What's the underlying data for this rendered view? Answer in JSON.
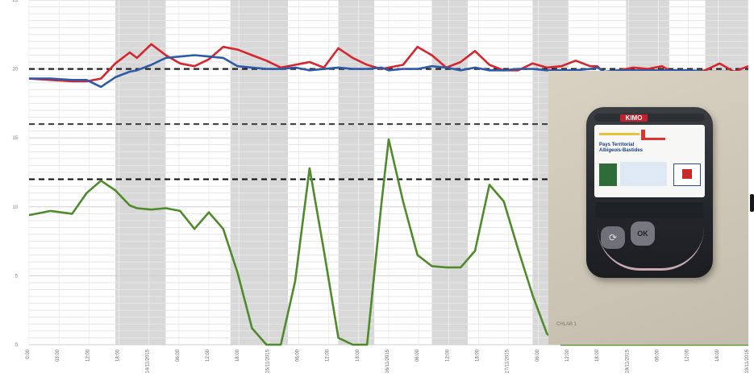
{
  "chart_data": {
    "type": "line",
    "title": "",
    "xlabel": "",
    "ylabel": "",
    "ylim": [
      0,
      25
    ],
    "yticks": [
      "0",
      "5",
      "10",
      "15",
      "20",
      "25"
    ],
    "x_tick_labels": [
      "0:00",
      "03:00",
      "12:00",
      "18:00",
      "14/11/2015",
      "06:00",
      "12:00",
      "18:00",
      "15/11/2015",
      "06:00",
      "12:00",
      "18:00",
      "16/11/2015",
      "06:00",
      "12:00",
      "18:00",
      "17/11/2015",
      "06:00",
      "12:00",
      "18:00",
      "18/11/2015",
      "06:00",
      "12:00",
      "18:00",
      "19/11/2015"
    ],
    "reference_lines": [
      {
        "y": 20.0,
        "style": "dashed",
        "color": "#222222"
      },
      {
        "y": 16.0,
        "style": "dashed",
        "color": "#444444"
      },
      {
        "y": 12.0,
        "style": "dashed",
        "color": "#111111"
      }
    ],
    "x": [
      0,
      3,
      6,
      8,
      10,
      12,
      14,
      15,
      17,
      19,
      21,
      23,
      25,
      27,
      29,
      31,
      33,
      35,
      37,
      39,
      41,
      43,
      45,
      47,
      49,
      50,
      52,
      54,
      56,
      58,
      60,
      62,
      64,
      66,
      68,
      70,
      72,
      74,
      76,
      78,
      79,
      80,
      82,
      84,
      86,
      88,
      90,
      92,
      94,
      96,
      98,
      100
    ],
    "series": [
      {
        "color": "#d6252c",
        "values": [
          19.3,
          19.2,
          19.1,
          19.1,
          19.3,
          20.4,
          21.2,
          20.8,
          21.8,
          21.0,
          20.4,
          20.2,
          20.7,
          21.6,
          21.4,
          21.0,
          20.6,
          20.1,
          20.3,
          20.5,
          20.1,
          21.5,
          20.8,
          20.3,
          20.0,
          20.1,
          20.3,
          21.6,
          21.0,
          20.1,
          20.5,
          21.3,
          20.3,
          19.9,
          19.9,
          20.4,
          20.1,
          20.2,
          20.6,
          20.2,
          20.2,
          19.7,
          19.9,
          20.1,
          20.0,
          20.2,
          19.6,
          19.7,
          19.9,
          20.4,
          19.8,
          20.2
        ]
      },
      {
        "color": "#2e5aa8",
        "values": [
          19.3,
          19.3,
          19.2,
          19.2,
          18.7,
          19.4,
          19.8,
          19.9,
          20.3,
          20.8,
          20.9,
          21.0,
          20.9,
          20.8,
          20.2,
          20.1,
          20.0,
          20.0,
          20.1,
          19.9,
          20.0,
          20.1,
          20.0,
          20.0,
          20.1,
          19.9,
          20.0,
          20.0,
          20.2,
          20.1,
          19.9,
          20.1,
          19.9,
          19.9,
          20.0,
          20.0,
          19.9,
          19.9,
          19.9,
          20.0,
          20.1,
          19.8,
          19.9,
          19.9,
          19.9,
          19.9,
          19.9,
          19.9,
          19.8,
          19.8,
          19.8,
          19.8
        ]
      },
      {
        "color": "#4f8a2b",
        "values": [
          9.4,
          9.7,
          9.5,
          11.0,
          11.9,
          11.2,
          10.1,
          9.9,
          9.8,
          9.9,
          9.7,
          8.4,
          9.6,
          8.4,
          5.2,
          1.2,
          0.0,
          0.0,
          4.6,
          12.8,
          6.8,
          0.5,
          0.0,
          0.0,
          10.3,
          14.9,
          10.4,
          6.5,
          5.7,
          5.6,
          5.6,
          6.8,
          11.6,
          10.4,
          6.9,
          3.6,
          0.8,
          0.0,
          0.0,
          0.0,
          0.0,
          0.0,
          0.0,
          0.0,
          0.0,
          0.0,
          0.0,
          0.0,
          0.0,
          0.0,
          0.0,
          0.0
        ]
      }
    ],
    "grid": true,
    "shaded_bands": [
      [
        12,
        19
      ],
      [
        28,
        36
      ],
      [
        43,
        48
      ],
      [
        56,
        61
      ],
      [
        70,
        75
      ],
      [
        83,
        89
      ],
      [
        94,
        100
      ]
    ]
  },
  "photo": {
    "brand": "KIMO",
    "org_line1": "Pays Territorial",
    "org_line2": "Albigeois-Bastides",
    "ok_button": "OK",
    "left_button": "⟳",
    "caption": "CHLAB 1"
  }
}
